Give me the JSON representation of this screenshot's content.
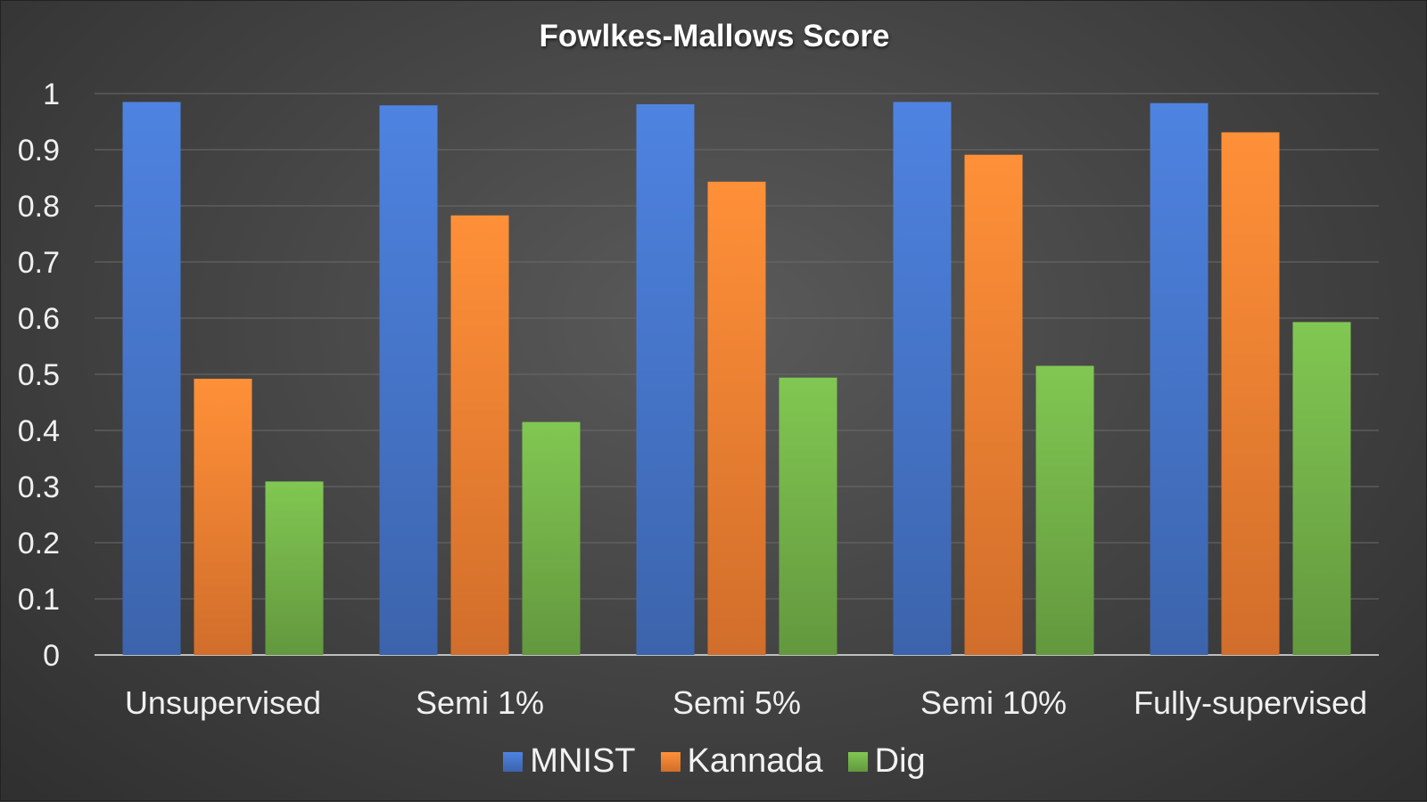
{
  "chart_data": {
    "type": "bar",
    "title": "Fowlkes-Mallows Score",
    "xlabel": "",
    "ylabel": "",
    "categories": [
      "Unsupervised",
      "Semi 1%",
      "Semi 5%",
      "Semi 10%",
      "Fully-supervised"
    ],
    "series": [
      {
        "name": "MNIST",
        "color": "#4472c4",
        "values": [
          0.985,
          0.979,
          0.981,
          0.985,
          0.983
        ]
      },
      {
        "name": "Kannada",
        "color": "#ed7d31",
        "values": [
          0.492,
          0.783,
          0.843,
          0.891,
          0.931
        ]
      },
      {
        "name": "Dig",
        "color": "#70ad47",
        "values": [
          0.309,
          0.415,
          0.494,
          0.515,
          0.593
        ]
      }
    ],
    "ylim": [
      0,
      1
    ],
    "yticks": [
      "0",
      "0.1",
      "0.2",
      "0.3",
      "0.4",
      "0.5",
      "0.6",
      "0.7",
      "0.8",
      "0.9",
      "1"
    ],
    "grid": true,
    "legend_position": "bottom"
  }
}
